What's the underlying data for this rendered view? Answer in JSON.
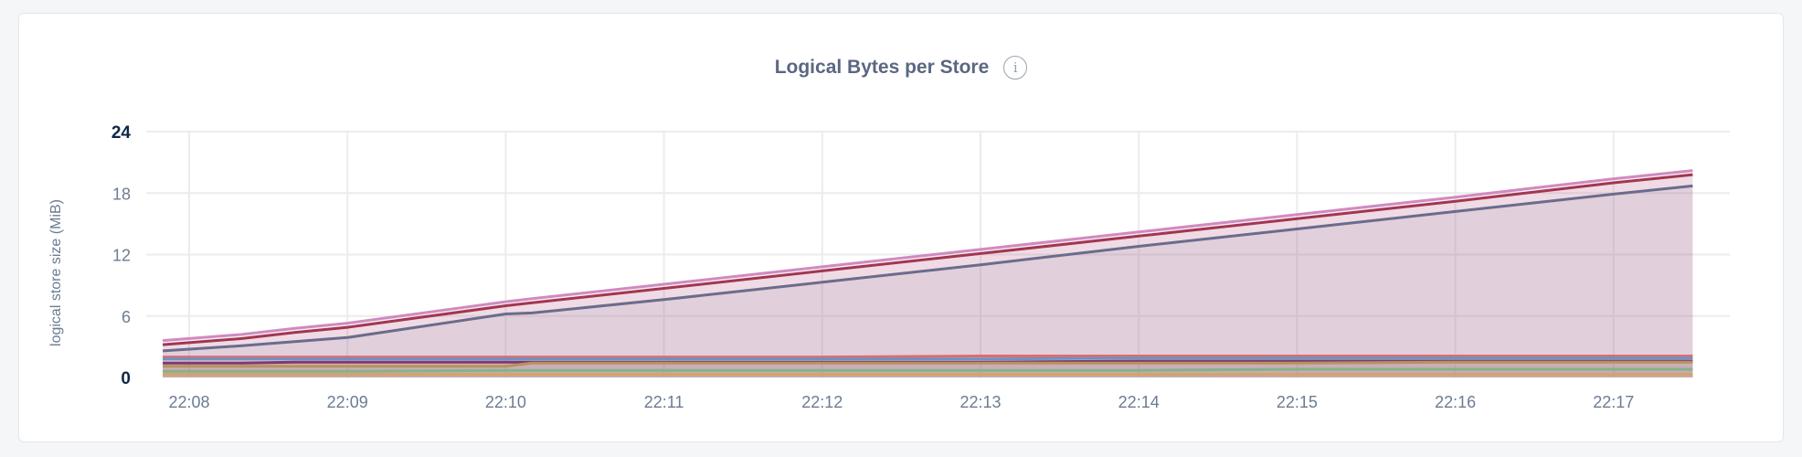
{
  "chart_data": {
    "type": "area",
    "title": "Logical Bytes per Store",
    "info_icon": "info-icon",
    "ylabel": "logical store size (MiB)",
    "xlabel": "",
    "ylim": [
      0,
      24
    ],
    "yticks": [
      "0",
      "6",
      "12",
      "18",
      "24"
    ],
    "xticks": [
      "22:08",
      "22:09",
      "22:10",
      "22:11",
      "22:12",
      "22:13",
      "22:14",
      "22:15",
      "22:16",
      "22:17"
    ],
    "grid": true,
    "legend": "none",
    "x": [
      "22:07:50",
      "22:08:20",
      "22:08:40",
      "22:09:00",
      "22:10:00",
      "22:10:10",
      "22:11:00",
      "22:12:00",
      "22:13:00",
      "22:14:00",
      "22:15:00",
      "22:16:00",
      "22:17:00",
      "22:17:30"
    ],
    "series": [
      {
        "color": "#d08ac0",
        "values": [
          3.6,
          4.2,
          4.8,
          5.3,
          7.4,
          7.7,
          9.1,
          10.8,
          12.5,
          14.2,
          15.9,
          17.6,
          19.4,
          20.2
        ]
      },
      {
        "color": "#a3364f",
        "values": [
          3.2,
          3.8,
          4.4,
          4.9,
          7.0,
          7.3,
          8.7,
          10.4,
          12.1,
          13.8,
          15.5,
          17.2,
          19.0,
          19.8
        ]
      },
      {
        "color": "#6b6c8c",
        "values": [
          2.6,
          3.1,
          3.5,
          3.9,
          6.2,
          6.3,
          7.6,
          9.3,
          11.0,
          12.8,
          14.5,
          16.2,
          17.9,
          18.7
        ]
      },
      {
        "color": "#e06c6c",
        "values": [
          2.0,
          2.0,
          2.0,
          2.0,
          2.0,
          2.0,
          2.0,
          2.0,
          2.1,
          2.1,
          2.1,
          2.1,
          2.1,
          2.1
        ]
      },
      {
        "color": "#6c93c4",
        "values": [
          1.8,
          1.8,
          1.8,
          1.8,
          1.8,
          1.8,
          1.8,
          1.8,
          1.8,
          1.9,
          1.9,
          1.9,
          1.9,
          1.9
        ]
      },
      {
        "color": "#7d3a6e",
        "values": [
          1.4,
          1.4,
          1.5,
          1.5,
          1.5,
          1.5,
          1.5,
          1.5,
          1.5,
          1.6,
          1.6,
          1.6,
          1.6,
          1.6
        ]
      },
      {
        "color": "#b8935a",
        "values": [
          1.1,
          1.1,
          1.1,
          1.1,
          1.1,
          1.4,
          1.4,
          1.4,
          1.4,
          1.4,
          1.4,
          1.5,
          1.5,
          1.5
        ]
      },
      {
        "color": "#86b28a",
        "values": [
          0.6,
          0.6,
          0.6,
          0.6,
          0.7,
          0.7,
          0.7,
          0.7,
          0.7,
          0.7,
          0.8,
          0.8,
          0.8,
          0.8
        ]
      },
      {
        "color": "#d4a26a",
        "values": [
          0.3,
          0.3,
          0.3,
          0.3,
          0.3,
          0.3,
          0.3,
          0.3,
          0.3,
          0.3,
          0.3,
          0.3,
          0.3,
          0.3
        ]
      }
    ]
  }
}
